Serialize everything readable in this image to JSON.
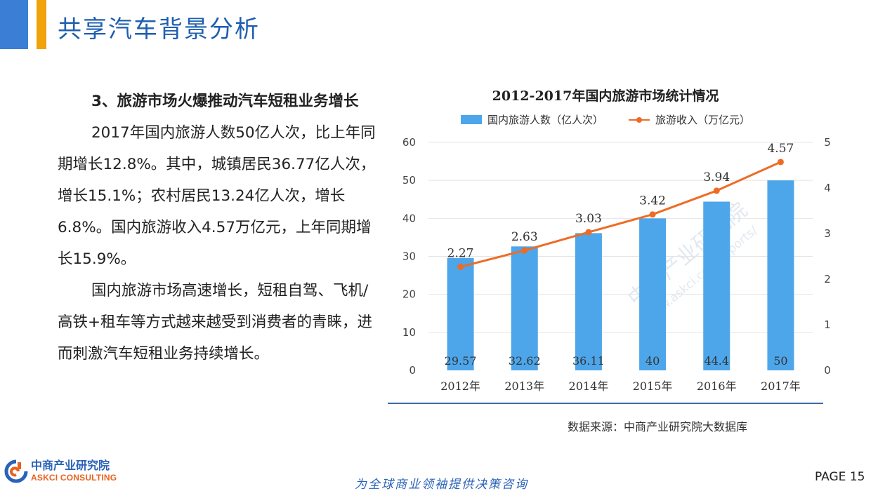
{
  "header": {
    "title": "共享汽车背景分析"
  },
  "left": {
    "heading": "3、旅游市场火爆推动汽车短租业务增长",
    "paragraph1": "2017年国内旅游人数50亿人次，比上年同期增长12.8%。其中，城镇居民36.77亿人次，增长15.1%；农村居民13.24亿人次，增长6.8%。国内旅游收入4.57万亿元，上年同期增长15.9%。",
    "paragraph2": "国内旅游市场高速增长，短租自驾、飞机/高铁+租车等方式越来越受到消费者的青睐，进而刺激汽车短租业务持续增长。"
  },
  "chart_data": {
    "type": "bar",
    "title": "2012-2017年国内旅游市场统计情况",
    "categories": [
      "2012年",
      "2013年",
      "2014年",
      "2015年",
      "2016年",
      "2017年"
    ],
    "series": [
      {
        "name": "国内旅游人数（亿人次）",
        "type": "bar",
        "axis": "left",
        "values": [
          29.57,
          32.62,
          36.11,
          40,
          44.4,
          50
        ],
        "labels": [
          "29.57",
          "32.62",
          "36.11",
          "40",
          "44.4",
          "50"
        ],
        "color": "#4da6ea"
      },
      {
        "name": "旅游收入（万亿元）",
        "type": "line",
        "axis": "right",
        "values": [
          2.27,
          2.63,
          3.03,
          3.42,
          3.94,
          4.57
        ],
        "labels": [
          "2.27",
          "2.63",
          "3.03",
          "3.42",
          "3.94",
          "4.57"
        ],
        "color": "#ed6c25"
      }
    ],
    "ylim_left": [
      0,
      60
    ],
    "yticks_left": [
      "0",
      "10",
      "20",
      "30",
      "40",
      "50",
      "60"
    ],
    "ylim_right": [
      0,
      5
    ],
    "yticks_right": [
      "0",
      "1",
      "2",
      "3",
      "4",
      "5"
    ],
    "grid": true,
    "legend": "top"
  },
  "footer": {
    "source": "数据来源：中商产业研究院大数据库",
    "logo_cn": "中商产业研究院",
    "logo_en": "ASKCI CONSULTING",
    "slogan": "为全球商业领袖提供决策咨询",
    "page": "PAGE  15"
  },
  "watermark": {
    "text1": "中商产业研究院",
    "text2": "www.askci.com/reports/"
  }
}
